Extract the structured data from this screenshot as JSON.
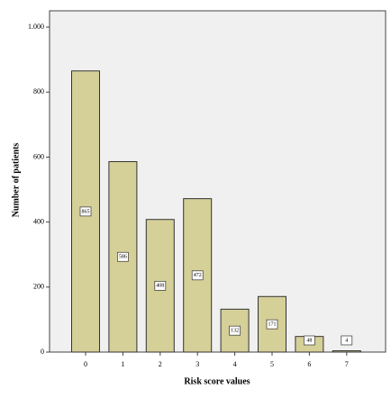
{
  "chart_data": {
    "type": "bar",
    "x_label": "Risk score values",
    "y_label": "Number of patients",
    "categories": [
      "0",
      "1",
      "2",
      "3",
      "4",
      "5",
      "6",
      "7"
    ],
    "values": [
      865,
      586,
      408,
      472,
      132,
      171,
      48,
      4
    ],
    "color": "#d5cf98",
    "ylim": [
      0,
      1050
    ],
    "yticks": [
      0,
      200,
      400,
      600,
      800,
      {
        "value": 1000,
        "label": "1.000"
      }
    ],
    "grid": false
  }
}
